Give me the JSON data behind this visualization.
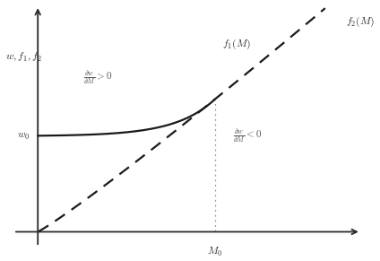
{
  "figsize": [
    4.24,
    2.91
  ],
  "dpi": 100,
  "bg_color": "#ffffff",
  "axis_color": "#2a2a2a",
  "curve_color": "#1a1a1a",
  "dotted_color": "#999999",
  "x_min": 0.0,
  "x_max": 10.0,
  "y_min": 0.0,
  "y_max": 10.0,
  "w0_y": 4.5,
  "M0_x": 5.8,
  "intersection_y": 6.2,
  "ylabel_text": "$w, f_1, f_2$",
  "w0_label": "$w_0$",
  "M0_label": "$M_0$",
  "f1_label": "$f_1(M)$",
  "f2_label": "$f_2(M)$",
  "annotation1": "$\\frac{\\partial w}{\\partial M} > 0$",
  "annotation2": "$\\frac{\\partial w}{\\partial M} < 0$",
  "f1_k": 4.5,
  "f2_slope": 1.05,
  "f2_intercept": 0.05
}
